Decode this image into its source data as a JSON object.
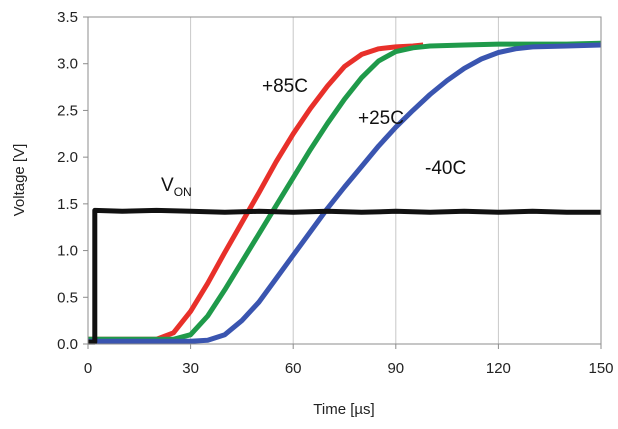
{
  "chart_data": {
    "type": "line",
    "xlabel": "Time [µs]",
    "ylabel": "Voltage [V]",
    "xlim": [
      0,
      150
    ],
    "ylim": [
      0,
      3.5
    ],
    "xticks": [
      0,
      30,
      60,
      90,
      120,
      150
    ],
    "xtick_labels": [
      "0",
      "30",
      "60",
      "90",
      "120",
      "150"
    ],
    "yticks": [
      0,
      0.5,
      1.0,
      1.5,
      2.0,
      2.5,
      3.0,
      3.5
    ],
    "ytick_labels": [
      "0.0",
      "0.5",
      "1.0",
      "1.5",
      "2.0",
      "2.5",
      "3.0",
      "3.5"
    ],
    "grid": "vertical",
    "series": [
      {
        "name": "+85C",
        "color": "#e8302a",
        "x": [
          0,
          20,
          25,
          30,
          35,
          40,
          45,
          50,
          55,
          60,
          65,
          70,
          75,
          80,
          85,
          90,
          95,
          98
        ],
        "y": [
          0.05,
          0.05,
          0.12,
          0.35,
          0.65,
          0.98,
          1.3,
          1.62,
          1.95,
          2.25,
          2.52,
          2.76,
          2.97,
          3.1,
          3.16,
          3.18,
          3.19,
          3.2
        ]
      },
      {
        "name": "+25C",
        "color": "#1f9a4a",
        "x": [
          0,
          25,
          30,
          35,
          40,
          45,
          50,
          55,
          60,
          65,
          70,
          75,
          80,
          85,
          90,
          95,
          100,
          110,
          120,
          130,
          140,
          150
        ],
        "y": [
          0.05,
          0.05,
          0.1,
          0.3,
          0.58,
          0.88,
          1.18,
          1.48,
          1.78,
          2.08,
          2.36,
          2.62,
          2.85,
          3.03,
          3.13,
          3.17,
          3.19,
          3.2,
          3.21,
          3.21,
          3.21,
          3.22
        ]
      },
      {
        "name": "-40C",
        "color": "#3a55b0",
        "x": [
          0,
          30,
          35,
          40,
          45,
          50,
          55,
          60,
          65,
          70,
          75,
          80,
          85,
          90,
          95,
          100,
          105,
          110,
          115,
          120,
          125,
          130,
          140,
          150
        ],
        "y": [
          0.03,
          0.03,
          0.04,
          0.1,
          0.25,
          0.45,
          0.7,
          0.95,
          1.2,
          1.45,
          1.68,
          1.9,
          2.12,
          2.32,
          2.5,
          2.67,
          2.82,
          2.95,
          3.05,
          3.12,
          3.16,
          3.18,
          3.19,
          3.2
        ]
      },
      {
        "name": "V",
        "name_sub": "ON",
        "color": "#111111",
        "x": [
          0,
          2,
          2,
          10,
          20,
          30,
          40,
          50,
          60,
          70,
          80,
          90,
          100,
          110,
          120,
          130,
          140,
          150
        ],
        "y": [
          0.02,
          0.02,
          1.43,
          1.42,
          1.43,
          1.42,
          1.41,
          1.42,
          1.41,
          1.42,
          1.41,
          1.42,
          1.41,
          1.42,
          1.41,
          1.42,
          1.41,
          1.41
        ]
      }
    ]
  }
}
